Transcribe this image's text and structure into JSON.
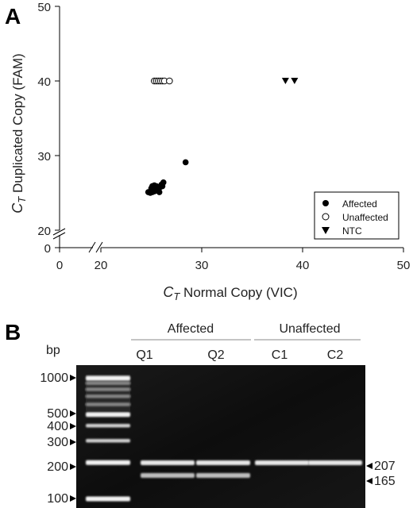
{
  "panels": {
    "a_letter": "A",
    "b_letter": "B"
  },
  "chart_data": [
    {
      "type": "scatter",
      "title": "",
      "xlabel": {
        "main": "C",
        "sub": "T",
        "rest": " Normal Copy (VIC)"
      },
      "ylabel": {
        "main": "C",
        "sub": "T",
        "rest": " Duplicated Copy (FAM)"
      },
      "x_ticks": [
        "0",
        "20",
        "30",
        "40",
        "50"
      ],
      "y_ticks_upper": [
        "20",
        "30",
        "40",
        "50"
      ],
      "y_tick_lower": "0",
      "xlim": [
        20,
        50
      ],
      "ylim": [
        20,
        50
      ],
      "axis_break": true,
      "grid": false,
      "legend_position": "bottom-right",
      "series": [
        {
          "name": "Affected",
          "marker": "filled-circle",
          "color": "#000000",
          "points": [
            [
              24.7,
              25.1
            ],
            [
              24.9,
              25.0
            ],
            [
              25.0,
              25.3
            ],
            [
              25.1,
              25.1
            ],
            [
              25.2,
              25.4
            ],
            [
              25.3,
              25.2
            ],
            [
              25.4,
              25.5
            ],
            [
              25.5,
              25.3
            ],
            [
              25.6,
              25.6
            ],
            [
              25.7,
              25.4
            ],
            [
              25.8,
              25.7
            ],
            [
              25.9,
              25.8
            ],
            [
              26.0,
              26.1
            ],
            [
              26.2,
              26.4
            ],
            [
              25.1,
              25.9
            ],
            [
              25.3,
              26.0
            ],
            [
              25.5,
              25.9
            ],
            [
              25.0,
              25.6
            ],
            [
              25.8,
              25.1
            ],
            [
              26.1,
              25.9
            ],
            [
              28.4,
              29.1
            ]
          ]
        },
        {
          "name": "Unaffected",
          "marker": "open-circle",
          "color": "#000000",
          "points": [
            [
              25.3,
              40
            ],
            [
              25.5,
              40
            ],
            [
              25.7,
              40
            ],
            [
              25.9,
              40
            ],
            [
              26.1,
              40
            ],
            [
              26.3,
              40
            ],
            [
              26.8,
              40
            ]
          ]
        },
        {
          "name": "NTC",
          "marker": "triangle-down",
          "color": "#000000",
          "points": [
            [
              38.3,
              40
            ],
            [
              39.2,
              40
            ]
          ]
        }
      ]
    },
    {
      "type": "gel",
      "unit_label": "bp",
      "group_labels": [
        "Affected",
        "Unaffected"
      ],
      "lane_labels": [
        "Q1",
        "Q2",
        "C1",
        "C2"
      ],
      "ladder_labels": [
        "1000",
        "500",
        "400",
        "300",
        "200",
        "100"
      ],
      "ladder_values": [
        1000,
        500,
        400,
        300,
        200,
        100
      ],
      "band_labels": [
        "207",
        "165"
      ],
      "band_values": [
        207,
        165
      ],
      "lanes": [
        {
          "label": "Q1",
          "bands": [
            207,
            165
          ]
        },
        {
          "label": "Q2",
          "bands": [
            207,
            165
          ]
        },
        {
          "label": "C1",
          "bands": [
            207
          ]
        },
        {
          "label": "C2",
          "bands": [
            207
          ]
        }
      ]
    }
  ]
}
